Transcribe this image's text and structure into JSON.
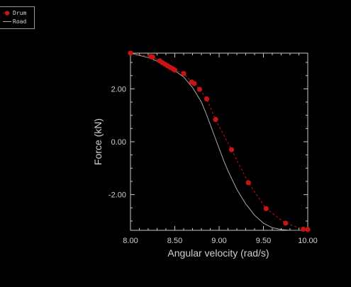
{
  "chart_data": {
    "type": "line",
    "xlabel": "Angular velocity (rad/s)",
    "ylabel": "Force (kN)",
    "xlim": [
      8.0,
      10.0
    ],
    "ylim": [
      -3.35,
      3.35
    ],
    "x_ticks": [
      8.0,
      8.5,
      9.0,
      9.5,
      10.0
    ],
    "x_tick_labels": [
      "8.00",
      "8.50",
      "9.00",
      "9.50",
      "10.00"
    ],
    "y_ticks": [
      -2.0,
      0.0,
      2.0
    ],
    "y_tick_labels": [
      "-2.00",
      "0.00",
      "2.00"
    ],
    "grid": false,
    "legend_position": "top-left",
    "series": [
      {
        "name": "Drum",
        "color": "#c81414",
        "style": "dashed line with circle markers",
        "x": [
          8.0,
          8.23,
          8.25,
          8.33,
          8.36,
          8.39,
          8.42,
          8.45,
          8.48,
          8.5,
          8.6,
          8.69,
          8.72,
          8.78,
          8.86,
          8.96,
          9.14,
          9.33,
          9.53,
          9.75,
          9.95,
          10.0
        ],
        "y": [
          3.35,
          3.22,
          3.2,
          3.06,
          2.99,
          2.93,
          2.87,
          2.81,
          2.75,
          2.71,
          2.58,
          2.26,
          2.2,
          1.98,
          1.62,
          0.84,
          -0.3,
          -1.55,
          -2.53,
          -3.08,
          -3.31,
          -3.32
        ]
      },
      {
        "name": "Road",
        "color": "#a8a8a8",
        "style": "solid line",
        "x": [
          8.0,
          8.2,
          8.4,
          8.6,
          8.7,
          8.8,
          8.85,
          8.9,
          8.95,
          9.0,
          9.05,
          9.1,
          9.2,
          9.3,
          9.4,
          9.5,
          9.6,
          9.7,
          9.8,
          9.9,
          10.0
        ],
        "y": [
          3.35,
          3.18,
          2.92,
          2.45,
          2.05,
          1.5,
          1.1,
          0.65,
          0.2,
          -0.25,
          -0.7,
          -1.1,
          -1.8,
          -2.35,
          -2.78,
          -3.08,
          -3.25,
          -3.32,
          -3.35,
          -3.35,
          -3.35
        ]
      }
    ]
  }
}
